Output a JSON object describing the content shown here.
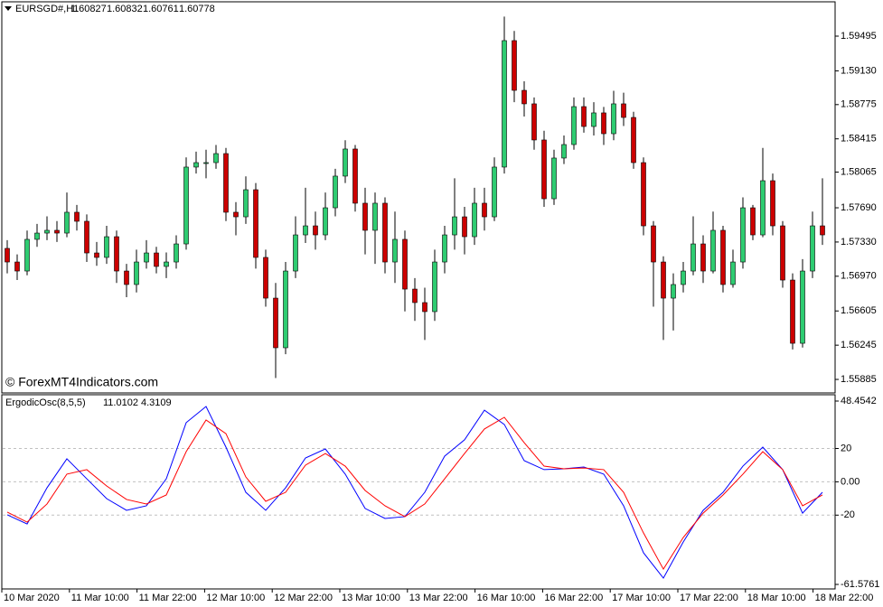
{
  "chart_data": [
    {
      "type": "candlestick",
      "title": "EURSGD#,H1",
      "title_values": [
        1.60827,
        1.60832,
        1.60761,
        1.60778
      ],
      "watermark": "© ForexMT4Indicators.com",
      "up_color": "#2ecc71",
      "down_color": "#cc0000",
      "open": [
        1.57263,
        1.5712,
        1.57025,
        1.57358,
        1.57424,
        1.57453,
        1.57424,
        1.57643,
        1.57548,
        1.57215,
        1.57168,
        1.57386,
        1.57025,
        1.56883,
        1.5712,
        1.57215,
        1.57073,
        1.5712,
        1.5731,
        1.58118,
        1.58165,
        1.58165,
        1.5826,
        1.57643,
        1.57595,
        1.5788,
        1.57168,
        1.5674,
        1.56218,
        1.57025,
        1.57405,
        1.575,
        1.57405,
        1.5769,
        1.58023,
        1.58308,
        1.57738,
        1.57453,
        1.57738,
        1.5712,
        1.57358,
        1.56835,
        1.56693,
        1.56598,
        1.5712,
        1.57405,
        1.57595,
        1.57386,
        1.57738,
        1.57595,
        1.58118,
        1.59448,
        1.58925,
        1.58783,
        1.58403,
        1.57785,
        1.58213,
        1.58355,
        1.58754,
        1.58545,
        1.58688,
        1.58469,
        1.58783,
        1.5864,
        1.58165,
        1.575,
        1.5712,
        1.5674,
        1.56883,
        1.57025,
        1.5731,
        1.57025,
        1.57453,
        1.56883,
        1.5712,
        1.5769,
        1.57405,
        1.57975,
        1.575,
        1.5693,
        1.56265,
        1.57025,
        1.575
      ],
      "high": [
        1.5735,
        1.572,
        1.5745,
        1.5752,
        1.576,
        1.5755,
        1.5785,
        1.5772,
        1.5762,
        1.5733,
        1.575,
        1.5745,
        1.571,
        1.5725,
        1.5735,
        1.5728,
        1.5722,
        1.574,
        1.5822,
        1.5828,
        1.583,
        1.5835,
        1.5832,
        1.5775,
        1.5802,
        1.5795,
        1.5725,
        1.569,
        1.5712,
        1.576,
        1.579,
        1.5765,
        1.5785,
        1.581,
        1.584,
        1.5835,
        1.579,
        1.5785,
        1.578,
        1.5765,
        1.5745,
        1.5695,
        1.5685,
        1.5725,
        1.575,
        1.58,
        1.577,
        1.579,
        1.579,
        1.5822,
        1.597,
        1.5955,
        1.5902,
        1.5885,
        1.585,
        1.583,
        1.5845,
        1.5885,
        1.5885,
        1.588,
        1.5875,
        1.5892,
        1.589,
        1.587,
        1.5822,
        1.5755,
        1.5718,
        1.57,
        1.5712,
        1.576,
        1.574,
        1.5765,
        1.575,
        1.5725,
        1.578,
        1.5772,
        1.5832,
        1.5805,
        1.5755,
        1.57,
        1.5715,
        1.5765,
        1.58
      ],
      "low": [
        1.57,
        1.5693,
        1.5698,
        1.5728,
        1.5735,
        1.5733,
        1.5738,
        1.5745,
        1.5712,
        1.5708,
        1.571,
        1.569,
        1.5675,
        1.568,
        1.5705,
        1.57,
        1.5695,
        1.5705,
        1.5725,
        1.5805,
        1.58,
        1.581,
        1.5755,
        1.574,
        1.5752,
        1.5705,
        1.5665,
        1.559,
        1.5615,
        1.5695,
        1.5732,
        1.5725,
        1.5735,
        1.576,
        1.5795,
        1.5765,
        1.572,
        1.571,
        1.57,
        1.569,
        1.566,
        1.565,
        1.563,
        1.565,
        1.57,
        1.5725,
        1.572,
        1.573,
        1.5745,
        1.5755,
        1.5805,
        1.588,
        1.5865,
        1.583,
        1.577,
        1.5772,
        1.5815,
        1.583,
        1.5848,
        1.5845,
        1.5835,
        1.584,
        1.5855,
        1.581,
        1.574,
        1.5665,
        1.563,
        1.564,
        1.568,
        1.5698,
        1.569,
        1.57,
        1.568,
        1.5685,
        1.5705,
        1.5735,
        1.5738,
        1.574,
        1.5685,
        1.562,
        1.5622,
        1.5695,
        1.573
      ],
      "close": [
        1.5712,
        1.57025,
        1.57358,
        1.57424,
        1.57453,
        1.57424,
        1.57643,
        1.57548,
        1.57215,
        1.57168,
        1.57386,
        1.57025,
        1.56883,
        1.5712,
        1.57215,
        1.57073,
        1.5712,
        1.5731,
        1.58118,
        1.58165,
        1.58165,
        1.5826,
        1.57643,
        1.57595,
        1.5788,
        1.57168,
        1.5674,
        1.56218,
        1.57025,
        1.57405,
        1.575,
        1.57405,
        1.5769,
        1.58023,
        1.58308,
        1.57738,
        1.57453,
        1.57738,
        1.5712,
        1.57358,
        1.56835,
        1.56693,
        1.56598,
        1.5712,
        1.57405,
        1.57595,
        1.57386,
        1.57738,
        1.57595,
        1.58118,
        1.59448,
        1.58925,
        1.58783,
        1.58403,
        1.57785,
        1.58213,
        1.58355,
        1.58754,
        1.58545,
        1.58688,
        1.58469,
        1.58783,
        1.5864,
        1.58165,
        1.575,
        1.5712,
        1.5674,
        1.56883,
        1.57025,
        1.5731,
        1.57025,
        1.57453,
        1.56883,
        1.5712,
        1.5769,
        1.57405,
        1.57975,
        1.575,
        1.5693,
        1.56265,
        1.57025,
        1.575,
        1.57405
      ],
      "ylim": [
        1.55743,
        1.59856
      ],
      "yticks": [
        1.59495,
        {
          "value": 1.5913,
          "label": "1.59130"
        },
        1.58775,
        1.58415,
        1.58065,
        {
          "value": 1.5769,
          "label": "1.57690"
        },
        {
          "value": 1.5733,
          "label": "1.57330"
        },
        {
          "value": 1.5697,
          "label": "1.56970"
        },
        1.56605,
        1.56245,
        1.55885
      ],
      "x_labels": [
        "10 Mar 2020",
        "11 Mar 10:00",
        "11 Mar 22:00",
        "12 Mar 10:00",
        "12 Mar 22:00",
        "13 Mar 10:00",
        "13 Mar 22:00",
        "16 Mar 10:00",
        "16 Mar 22:00",
        "17 Mar 10:00",
        "17 Mar 22:00",
        "18 Mar 10:00",
        "18 Mar 22:00"
      ]
    },
    {
      "type": "line",
      "title": "ErgodicOsc(8,5,5)",
      "title_values": [
        11.0102,
        4.3109
      ],
      "x": [
        0,
        2,
        4,
        6,
        8,
        10,
        12,
        14,
        16,
        18,
        20,
        22,
        24,
        26,
        28,
        30,
        32,
        34,
        36,
        38,
        40,
        42,
        44,
        46,
        48,
        50,
        52,
        54,
        56,
        58,
        60,
        62,
        64,
        66,
        68,
        70,
        72,
        74,
        76,
        78,
        80,
        82
      ],
      "series": [
        {
          "color": "#0000ff",
          "values": [
            -19.8,
            -25.3,
            -3.6,
            13.8,
            1.8,
            -10.1,
            -17.1,
            -14.4,
            1.8,
            35.5,
            45.2,
            20.8,
            -6.3,
            -17.1,
            -3.6,
            14.3,
            19.7,
            4.6,
            -16.0,
            -22.0,
            -20.9,
            -6.3,
            15.4,
            25.2,
            43.0,
            34.4,
            12.7,
            7.3,
            7.8,
            8.9,
            4.6,
            -14.4,
            -42.6,
            -57.8,
            -36.1,
            -17.1,
            -6.3,
            9.4,
            20.8,
            7.3,
            -18.8,
            -6.3
          ]
        },
        {
          "color": "#ff0000",
          "values": [
            -18.2,
            -24.2,
            -13.3,
            4.6,
            7.3,
            -2.5,
            -10.6,
            -13.3,
            -7.9,
            18.1,
            37.1,
            28.9,
            2.9,
            -11.7,
            -6.3,
            10.0,
            17.0,
            9.4,
            -5.2,
            -14.4,
            -20.9,
            -13.3,
            1.8,
            17.0,
            31.7,
            38.7,
            23.5,
            9.4,
            7.8,
            8.3,
            7.3,
            -6.3,
            -30.7,
            -52.4,
            -33.4,
            -18.8,
            -7.9,
            4.6,
            18.1,
            7.3,
            -14.4,
            -7.9
          ]
        }
      ],
      "ylim": [
        -61.5761,
        48.4542
      ],
      "yticks": [
        48.4542,
        20,
        {
          "value": 0,
          "label": "0.00"
        },
        -20,
        -61.5761
      ],
      "grid_ticks": [
        20,
        0,
        -20
      ]
    }
  ]
}
